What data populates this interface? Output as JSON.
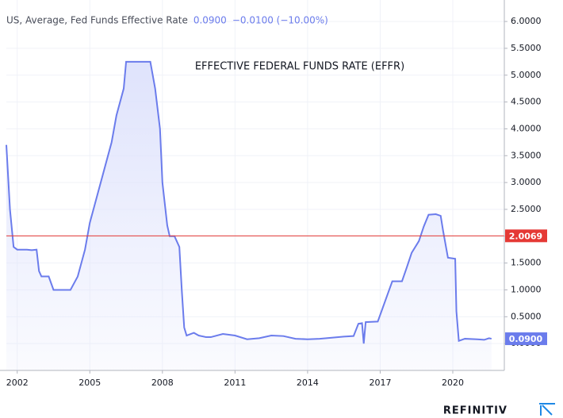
{
  "chart_data": {
    "type": "area",
    "header": {
      "name": "US, Average, Fed Funds Effective Rate",
      "change": "−0.0100 (−10.00%)"
    },
    "annotation": "EFFECTIVE FEDERAL FUNDS RATE (EFFR)",
    "brand": "REFINITIV",
    "x": [
      2001.55,
      2001.7,
      2001.85,
      2002.0,
      2002.2,
      2002.4,
      2002.6,
      2002.8,
      2002.9,
      2003.0,
      2003.3,
      2003.5,
      2003.8,
      2004.2,
      2004.5,
      2004.8,
      2005.0,
      2005.3,
      2005.6,
      2005.9,
      2006.1,
      2006.4,
      2006.5,
      2006.8,
      2007.0,
      2007.5,
      2007.7,
      2007.9,
      2008.0,
      2008.2,
      2008.3,
      2008.5,
      2008.7,
      2008.8,
      2008.9,
      2009.0,
      2009.3,
      2009.5,
      2009.8,
      2010.0,
      2010.5,
      2011.0,
      2011.5,
      2012.0,
      2012.5,
      2013.0,
      2013.5,
      2014.0,
      2014.5,
      2015.0,
      2015.5,
      2015.9,
      2016.1,
      2016.25,
      2016.32,
      2016.4,
      2016.9,
      2017.1,
      2017.3,
      2017.5,
      2017.9,
      2018.1,
      2018.3,
      2018.6,
      2018.8,
      2019.0,
      2019.3,
      2019.5,
      2019.6,
      2019.8,
      2020.1,
      2020.15,
      2020.25,
      2020.5,
      2021.0,
      2021.3,
      2021.5,
      2021.6
    ],
    "series": [
      {
        "name": "Fed Funds Effective Rate",
        "color": "#6b7cec",
        "fill": "#dfe3fc",
        "values": [
          3.7,
          2.5,
          1.8,
          1.75,
          1.75,
          1.75,
          1.74,
          1.75,
          1.35,
          1.25,
          1.25,
          1.0,
          1.0,
          1.0,
          1.25,
          1.75,
          2.25,
          2.75,
          3.25,
          3.75,
          4.25,
          4.75,
          5.25,
          5.25,
          5.25,
          5.25,
          4.75,
          4.0,
          3.0,
          2.2,
          2.0,
          2.0,
          1.8,
          1.0,
          0.3,
          0.15,
          0.2,
          0.15,
          0.12,
          0.12,
          0.18,
          0.15,
          0.08,
          0.1,
          0.15,
          0.14,
          0.09,
          0.08,
          0.09,
          0.11,
          0.13,
          0.14,
          0.37,
          0.38,
          0.0,
          0.4,
          0.41,
          0.66,
          0.91,
          1.16,
          1.16,
          1.42,
          1.69,
          1.91,
          2.18,
          2.4,
          2.41,
          2.38,
          2.1,
          1.6,
          1.58,
          0.6,
          0.05,
          0.09,
          0.08,
          0.07,
          0.1,
          0.09
        ]
      }
    ],
    "last_value": {
      "value": 0.09,
      "label": "0.0900"
    },
    "hline": {
      "value": 2.0069,
      "color": "#e53935"
    },
    "xlim": [
      2001.55,
      2022.13
    ],
    "xticks": [
      2002,
      2005,
      2008,
      2011,
      2014,
      2017,
      2020
    ],
    "ylim": [
      -0.5,
      6.4
    ],
    "yticks": [
      {
        "value": 0,
        "label": "0.0000"
      },
      {
        "value": 0.5,
        "label": "0.5000"
      },
      {
        "value": 1,
        "label": "1.0000"
      },
      {
        "value": 1.5,
        "label": "1.5000"
      },
      {
        "value": 2,
        "label": "2.0000"
      },
      {
        "value": 2.5,
        "label": "2.5000"
      },
      {
        "value": 3,
        "label": "3.0000"
      },
      {
        "value": 3.5,
        "label": "3.5000"
      },
      {
        "value": 4,
        "label": "4.0000"
      },
      {
        "value": 4.5,
        "label": "4.5000"
      },
      {
        "value": 5,
        "label": "5.0000"
      },
      {
        "value": 5.5,
        "label": "5.5000"
      },
      {
        "value": 6,
        "label": "6.0000"
      }
    ],
    "grid": true
  }
}
